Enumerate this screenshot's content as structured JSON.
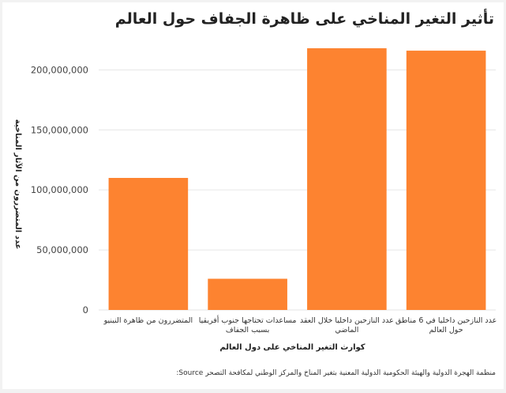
{
  "page": {
    "title": "تأثير التغير المناخي على ظاهرة الجفاف حول العالم",
    "source_label": "Source:",
    "source_text": "منظمة الهجرة الدولية والهيئة الحكومية الدولية المعنية بتغير المناخ والمركز الوطني لمكافحة التصحر"
  },
  "colors": {
    "bar": "#fd8330",
    "grid": "#e6e6e6",
    "background": "#ffffff"
  },
  "chart_data": {
    "type": "bar",
    "title": "تأثير التغير المناخي على ظاهرة الجفاف حول العالم",
    "xlabel": "كوارث التغير المناخي على دول العالم",
    "ylabel": "عدد المتضررون من الآثار المناخية",
    "categories": [
      [
        "المتضررون من ظاهرة النينيو"
      ],
      [
        "مساعدات تحتاجها جنوب أفريقيا",
        "بسبب الجفاف"
      ],
      [
        "عدد النازحين داخليا خلال العقد",
        "الماضي"
      ],
      [
        "عدد النازحين داخليا في 6 مناطق",
        "حول العالم"
      ]
    ],
    "values": [
      110000000,
      26000000,
      218000000,
      216000000
    ],
    "ylim": [
      0,
      220000000
    ],
    "yticks": [
      0,
      50000000,
      100000000,
      150000000,
      200000000
    ],
    "ytick_labels": [
      "0",
      "50,000,000",
      "100,000,000",
      "150,000,000",
      "200,000,000"
    ],
    "grid": true,
    "legend": "none"
  }
}
